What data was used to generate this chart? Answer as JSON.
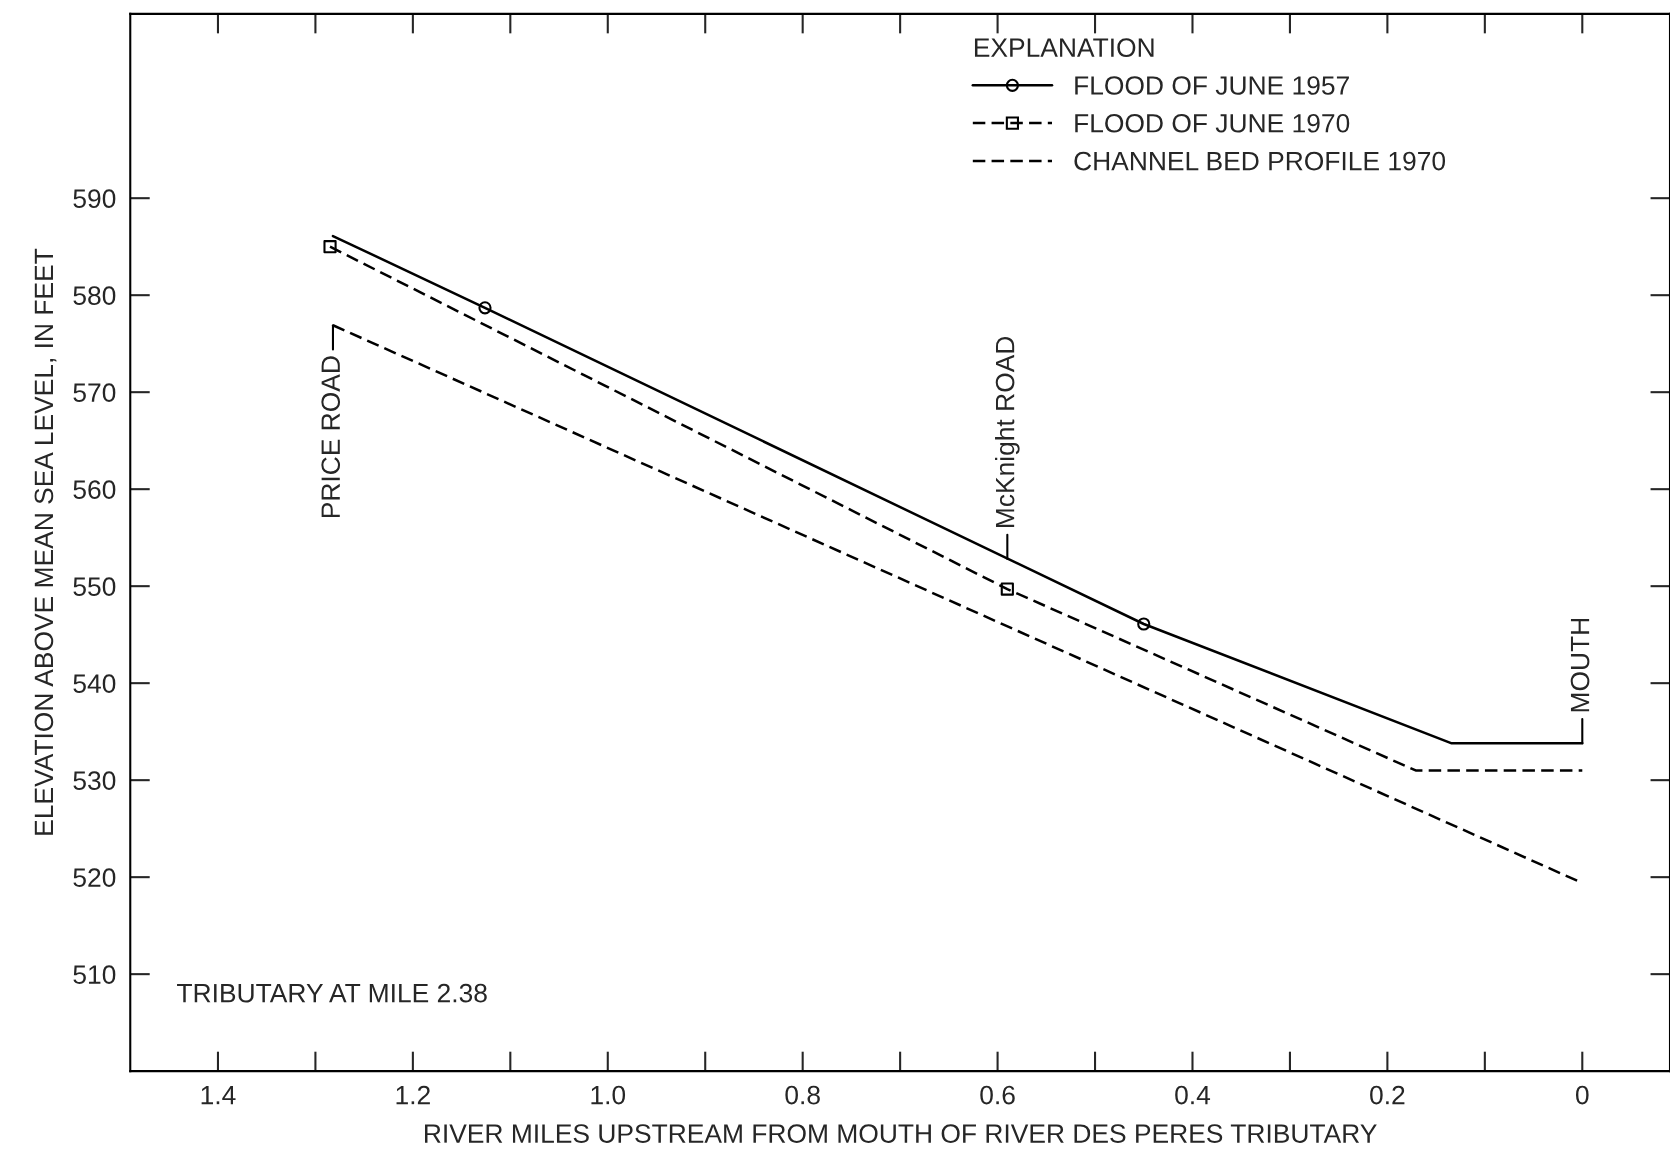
{
  "chart_data": {
    "type": "line",
    "xlabel": "RIVER MILES UPSTREAM FROM MOUTH OF RIVER DES PERES TRIBUTARY",
    "ylabel": "ELEVATION ABOVE MEAN SEA LEVEL, IN FEET",
    "legend_title": "EXPLANATION",
    "legend": "top right",
    "grid": false,
    "series": [
      {
        "name": "FLOOD OF JUNE 1957",
        "color": "#000000",
        "line_style": "solid",
        "marker": "none",
        "x": [
          1.282,
          1.126,
          0.45,
          0.134,
          0
        ],
        "values": [
          586.1,
          578.7,
          546.1,
          533.8,
          533.8
        ]
      },
      {
        "type": "scatter",
        "color": "#000000",
        "marker": "circle",
        "x": [
          1.126,
          0.45
        ],
        "values": [
          578.7,
          546.1
        ]
      },
      {
        "name": "FLOOD OF JUNE 1970",
        "color": "#000000",
        "line_style": "dashed",
        "marker": "none",
        "x": [
          1.285,
          0.59,
          0.171,
          0
        ],
        "values": [
          585,
          549.7,
          531,
          531
        ]
      },
      {
        "type": "scatter",
        "color": "#000000",
        "marker": "square",
        "x": [
          1.285,
          0.59
        ],
        "values": [
          585,
          549.7
        ]
      },
      {
        "name": "CHANNEL BED PROFILE 1970",
        "color": "#000000",
        "line_style": "dashed",
        "marker": "none",
        "x": [
          1.282,
          0
        ],
        "values": [
          576.9,
          519.4
        ]
      }
    ],
    "xlim": [
      1.49,
      -0.09
    ],
    "ylim": [
      500,
      609
    ],
    "xticks": [
      {
        "value": 1.4,
        "label": "1.4"
      },
      {
        "value": 1.2,
        "label": "1.2"
      },
      {
        "value": 1.0,
        "label": "1.0"
      },
      {
        "value": 0.8,
        "label": "0.8"
      },
      {
        "value": 0.6,
        "label": "0.6"
      },
      {
        "value": 0.4,
        "label": "0.4"
      },
      {
        "value": 0.2,
        "label": "0.2"
      },
      {
        "value": 0,
        "label": "0"
      }
    ],
    "yticks": [
      510,
      520,
      530,
      540,
      550,
      560,
      570,
      580,
      590
    ],
    "annotations": [
      {
        "text": "PRICE ROAD",
        "x": 1.282,
        "y": 576.9
      },
      {
        "text": "McKnight ROAD",
        "x": 0.59,
        "y": 552.8
      },
      {
        "text": "MOUTH",
        "x": 0,
        "y": 533.8
      },
      "TRIBUTARY AT MILE 2.38"
    ]
  }
}
